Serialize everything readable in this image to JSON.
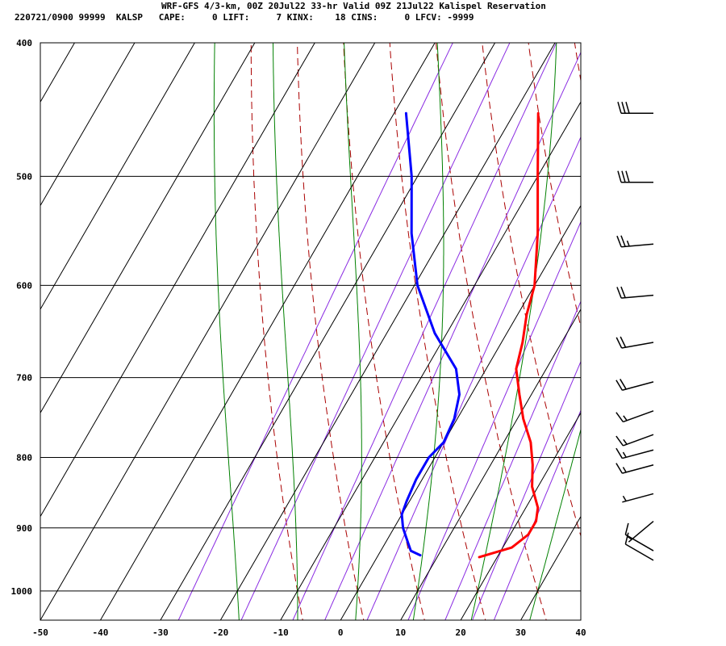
{
  "header": {
    "title": "WRF-GFS 4/3-km, 00Z 20Jul22 33-hr Valid 09Z 21Jul22 Kalispel Reservation",
    "info": "220721/0900 99999  KALSP   CAPE:     0 LIFT:     7 KINX:    18 CINS:     0 LFCV: -9999"
  },
  "chart_data": {
    "type": "line",
    "title": "WRF-GFS 4/3-km, 00Z 20Jul22 33-hr Valid 09Z 21Jul22 Kalispel Reservation",
    "xlabel": "",
    "ylabel": "",
    "xlim": [
      -50,
      40
    ],
    "ylim": [
      1050,
      400
    ],
    "y_scale": "log-pressure",
    "grid": true,
    "x_ticks": [
      "-50",
      "-40",
      "-30",
      "-20",
      "-10",
      "0",
      "10",
      "20",
      "30",
      "40"
    ],
    "y_ticks": [
      "400",
      "500",
      "600",
      "700",
      "800",
      "900",
      "1000"
    ],
    "colors": {
      "temperature": "#ff0000",
      "dewpoint": "#0000ff",
      "dry_adiabat": "#aa0000",
      "moist_adiabat": "#008000",
      "mixing_ratio": "#8a2be2",
      "grid": "#000000"
    },
    "series": [
      {
        "key": "temperature",
        "points": [
          [
            450,
            -16
          ],
          [
            500,
            -10
          ],
          [
            550,
            -4.5
          ],
          [
            600,
            0
          ],
          [
            630,
            1.5
          ],
          [
            660,
            3.5
          ],
          [
            690,
            5
          ],
          [
            720,
            8
          ],
          [
            750,
            11
          ],
          [
            780,
            14.5
          ],
          [
            810,
            17
          ],
          [
            840,
            19
          ],
          [
            870,
            22
          ],
          [
            890,
            23
          ],
          [
            910,
            23
          ],
          [
            930,
            21.5
          ],
          [
            945,
            17
          ]
        ]
      },
      {
        "key": "dewpoint",
        "points": [
          [
            450,
            -38
          ],
          [
            500,
            -31
          ],
          [
            550,
            -25.5
          ],
          [
            600,
            -19.5
          ],
          [
            650,
            -12
          ],
          [
            690,
            -5
          ],
          [
            720,
            -2
          ],
          [
            750,
            -0.5
          ],
          [
            780,
            0
          ],
          [
            800,
            -1
          ],
          [
            830,
            -1
          ],
          [
            860,
            -0.5
          ],
          [
            880,
            0
          ],
          [
            900,
            1.5
          ],
          [
            915,
            3
          ],
          [
            925,
            4
          ],
          [
            935,
            5
          ],
          [
            942,
            7
          ]
        ]
      }
    ],
    "wind_barbs": [
      {
        "p": 450,
        "speed_kt": 30,
        "dir_deg": 270
      },
      {
        "p": 505,
        "speed_kt": 30,
        "dir_deg": 270
      },
      {
        "p": 560,
        "speed_kt": 25,
        "dir_deg": 265
      },
      {
        "p": 610,
        "speed_kt": 20,
        "dir_deg": 265
      },
      {
        "p": 660,
        "speed_kt": 20,
        "dir_deg": 260
      },
      {
        "p": 705,
        "speed_kt": 20,
        "dir_deg": 255
      },
      {
        "p": 740,
        "speed_kt": 15,
        "dir_deg": 250
      },
      {
        "p": 770,
        "speed_kt": 15,
        "dir_deg": 250
      },
      {
        "p": 790,
        "speed_kt": 15,
        "dir_deg": 255
      },
      {
        "p": 810,
        "speed_kt": 15,
        "dir_deg": 255
      },
      {
        "p": 850,
        "speed_kt": 5,
        "dir_deg": 255
      },
      {
        "p": 890,
        "speed_kt": 5,
        "dir_deg": 230
      },
      {
        "p": 935,
        "speed_kt": 10,
        "dir_deg": 300
      },
      {
        "p": 950,
        "speed_kt": 10,
        "dir_deg": 300
      }
    ],
    "background": {
      "dry_adiabats_theta_c": [
        -10,
        0,
        10,
        20,
        30,
        40,
        50,
        60,
        70,
        80,
        90,
        100,
        110,
        120,
        130
      ],
      "moist_adiabats_t1000_c": [
        -20,
        -10,
        0,
        10,
        20,
        30,
        40
      ],
      "mixing_ratios_gkg": [
        0.4,
        1,
        2,
        3,
        5,
        8,
        12,
        16,
        20
      ]
    }
  }
}
